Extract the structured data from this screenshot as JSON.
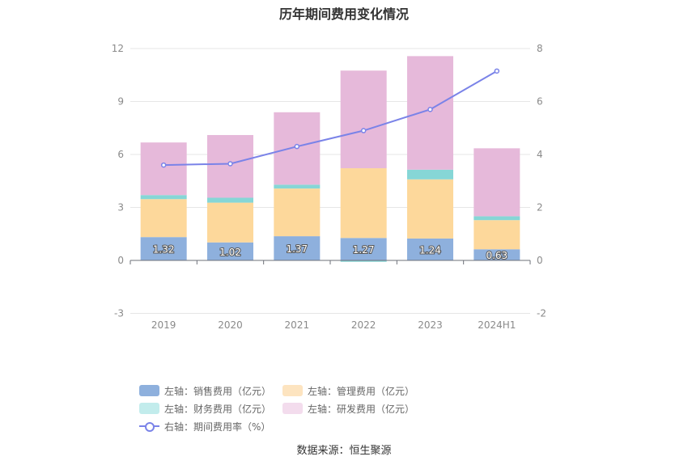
{
  "title": "历年期间费用变化情况",
  "source": "数据来源：恒生聚源",
  "colors": {
    "sales": "#8eb0dd",
    "admin": "#fdd89b",
    "finance": "#86d6d6",
    "rnd": "#e6b9da",
    "rate": "#7a83e8",
    "grid": "#e6e6e6",
    "axis": "#6e7079"
  },
  "legend": [
    {
      "key": "sales",
      "label": "左轴：销售费用（亿元）",
      "kind": "bar",
      "swatch": "#8eb0dd"
    },
    {
      "key": "admin",
      "label": "左轴：管理费用（亿元）",
      "kind": "bar",
      "swatch": "#fde4c0"
    },
    {
      "key": "finance",
      "label": "左轴：财务费用（亿元）",
      "kind": "bar",
      "swatch": "#c2ecec"
    },
    {
      "key": "rnd",
      "label": "左轴：研发费用（亿元）",
      "kind": "bar",
      "swatch": "#f3dced"
    },
    {
      "key": "rate",
      "label": "右轴：期间费用率（%）",
      "kind": "line",
      "swatch": "#7a83e8"
    }
  ],
  "chart_data": {
    "type": "bar",
    "stacked": true,
    "categories": [
      "2019",
      "2020",
      "2021",
      "2022",
      "2023",
      "2024H1"
    ],
    "series": [
      {
        "name": "左轴：销售费用（亿元）",
        "axis": "left",
        "values": [
          1.32,
          1.02,
          1.37,
          1.27,
          1.24,
          0.63
        ],
        "labels_shown": true
      },
      {
        "name": "左轴：管理费用（亿元）",
        "axis": "left",
        "values": [
          2.15,
          2.25,
          2.7,
          3.95,
          3.35,
          1.65
        ]
      },
      {
        "name": "左轴：财务费用（亿元）",
        "axis": "left",
        "values": [
          0.23,
          0.28,
          0.22,
          -0.08,
          0.55,
          0.22
        ]
      },
      {
        "name": "左轴：研发费用（亿元）",
        "axis": "left",
        "values": [
          2.98,
          3.55,
          4.1,
          5.53,
          6.43,
          3.85
        ]
      },
      {
        "name": "右轴：期间费用率（%）",
        "axis": "right",
        "type": "line",
        "values": [
          3.6,
          3.65,
          4.3,
          4.9,
          5.7,
          7.15
        ]
      }
    ],
    "left_axis": {
      "ticks": [
        "12",
        "9",
        "6",
        "3",
        "0",
        "-3"
      ],
      "ylim": [
        -3,
        12
      ]
    },
    "right_axis": {
      "ticks": [
        "8",
        "6",
        "4",
        "2",
        "0",
        "-2"
      ],
      "ylim": [
        -2,
        8
      ]
    },
    "grid": true,
    "legend_position": "bottom"
  }
}
